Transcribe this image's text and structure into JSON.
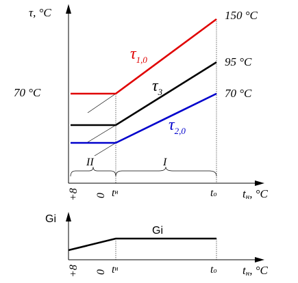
{
  "top_chart": {
    "y_axis_label": "τ, °C",
    "left_value_label": "70 °C",
    "right_labels": [
      "150 °C",
      "95 °C",
      "70 °C"
    ],
    "curve_labels": {
      "t1": {
        "symbol": "τ",
        "sub": "1,0",
        "color": "#e00000"
      },
      "t3": {
        "symbol": "τ",
        "sub": "3",
        "color": "#000000"
      },
      "t2": {
        "symbol": "τ",
        "sub": "2,0",
        "color": "#0000cc"
      }
    },
    "zones": {
      "zone_2": "II",
      "zone_1": "I"
    },
    "x_ticks": {
      "plus8": "+8",
      "zero": "0",
      "tn": "t",
      "tn_sub": "н",
      "to": "t",
      "to_sub": "о"
    },
    "x_axis_label": {
      "base": "t",
      "sub": "н",
      "unit": ", °C"
    }
  },
  "bottom_chart": {
    "y_axis_label": "Gі",
    "curve_label": "Gі",
    "x_ticks": {
      "plus8": "+8",
      "zero": "0",
      "tn": "t",
      "tn_sub": "н",
      "to": "t",
      "to_sub": "о"
    },
    "x_axis_label": {
      "base": "t",
      "sub": "н",
      "unit": ", °C"
    }
  }
}
